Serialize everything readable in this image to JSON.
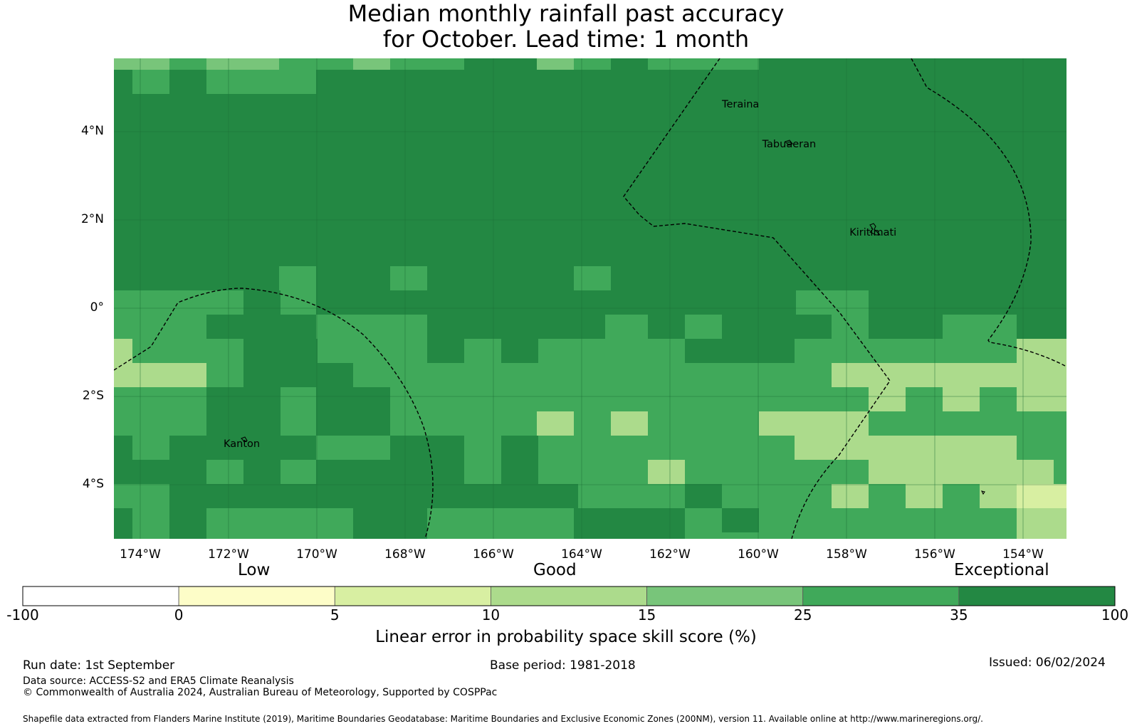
{
  "title": [
    "Median monthly rainfall past accuracy",
    "for October. Lead time: 1 month"
  ],
  "map": {
    "lat_ticks": [
      {
        "value": 4,
        "label": "4°N"
      },
      {
        "value": 2,
        "label": "2°N"
      },
      {
        "value": 0,
        "label": "0°"
      },
      {
        "value": -2,
        "label": "2°S"
      },
      {
        "value": -4,
        "label": "4°S"
      }
    ],
    "lon_ticks": [
      {
        "value": -174,
        "label": "174°W"
      },
      {
        "value": -172,
        "label": "172°W"
      },
      {
        "value": -170,
        "label": "170°W"
      },
      {
        "value": -168,
        "label": "168°W"
      },
      {
        "value": -166,
        "label": "166°W"
      },
      {
        "value": -164,
        "label": "164°W"
      },
      {
        "value": -162,
        "label": "162°W"
      },
      {
        "value": -160,
        "label": "160°W"
      },
      {
        "value": -158,
        "label": "158°W"
      },
      {
        "value": -156,
        "label": "156°W"
      },
      {
        "value": -154,
        "label": "154°W"
      }
    ],
    "places": [
      {
        "name": "Teraina",
        "lon": -160.4,
        "lat": 4.6
      },
      {
        "name": "Tabuaeran",
        "lon": -159.3,
        "lat": 3.7
      },
      {
        "name": "Kiritimati",
        "lon": -157.4,
        "lat": 1.7
      },
      {
        "name": "Kanton",
        "lon": -171.7,
        "lat": -3.1
      }
    ]
  },
  "legend": {
    "categories": [
      "Low",
      "Good",
      "Exceptional"
    ],
    "bounds": [
      "-100",
      "0",
      "5",
      "10",
      "15",
      "25",
      "35",
      "100"
    ],
    "colors": [
      "#ffffff",
      "#fdfdc8",
      "#d8efa2",
      "#acdb8c",
      "#78c57a",
      "#40a95a",
      "#238843"
    ],
    "label": "Linear error in probability space skill score (%)"
  },
  "footer": {
    "run_date": "Run date: 1st September",
    "base_period": "Base period: 1981-2018",
    "issued": "Issued: 06/02/2024",
    "data_source": "Data source: ACCESS-S2 and ERA5 Climate Reanalysis",
    "copyright": "© Commonwealth of Australia 2024, Australian Bureau of Meteorology, Supported by COSPPac",
    "shapefile": "Shapefile data extracted from Flanders Marine Institute (2019), Maritime Boundaries Geodatabase: Maritime Boundaries and Exclusive Economic Zones (200NM), version 11. Available online at http://www.marineregions.org/."
  }
}
